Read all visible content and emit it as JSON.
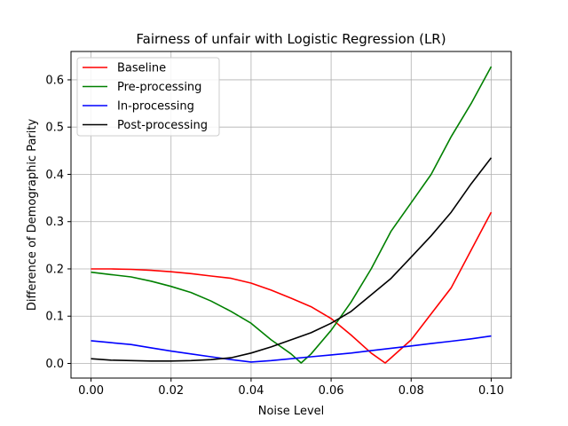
{
  "chart_data": {
    "type": "line",
    "title": "Fairness of unfair with Logistic Regression (LR)",
    "xlabel": "Noise Level",
    "ylabel": "Difference of Demographic Parity",
    "xlim": [
      -0.005,
      0.105
    ],
    "ylim": [
      -0.031,
      0.66
    ],
    "xticks": [
      0.0,
      0.02,
      0.04,
      0.06,
      0.08,
      0.1
    ],
    "xtick_labels": [
      "0.00",
      "0.02",
      "0.04",
      "0.06",
      "0.08",
      "0.10"
    ],
    "yticks": [
      0.0,
      0.1,
      0.2,
      0.3,
      0.4,
      0.5,
      0.6
    ],
    "ytick_labels": [
      "0.0",
      "0.1",
      "0.2",
      "0.3",
      "0.4",
      "0.5",
      "0.6"
    ],
    "grid": true,
    "legend_position": "top-left",
    "series": [
      {
        "name": "Baseline",
        "color": "#ff0000",
        "x": [
          0.0,
          0.005,
          0.01,
          0.015,
          0.02,
          0.025,
          0.03,
          0.035,
          0.04,
          0.045,
          0.05,
          0.055,
          0.06,
          0.065,
          0.07,
          0.0735,
          0.075,
          0.08,
          0.085,
          0.09,
          0.095,
          0.1
        ],
        "y": [
          0.2,
          0.2,
          0.199,
          0.197,
          0.194,
          0.19,
          0.185,
          0.18,
          0.17,
          0.155,
          0.138,
          0.12,
          0.095,
          0.06,
          0.022,
          0.001,
          0.012,
          0.05,
          0.105,
          0.16,
          0.24,
          0.32
        ]
      },
      {
        "name": "Pre-processing",
        "color": "#008000",
        "x": [
          0.0,
          0.005,
          0.01,
          0.015,
          0.02,
          0.025,
          0.03,
          0.035,
          0.04,
          0.045,
          0.05,
          0.0525,
          0.055,
          0.06,
          0.065,
          0.07,
          0.075,
          0.08,
          0.085,
          0.09,
          0.095,
          0.1
        ],
        "y": [
          0.193,
          0.188,
          0.183,
          0.174,
          0.163,
          0.15,
          0.132,
          0.11,
          0.085,
          0.05,
          0.02,
          0.001,
          0.02,
          0.07,
          0.13,
          0.2,
          0.28,
          0.34,
          0.4,
          0.48,
          0.55,
          0.628
        ]
      },
      {
        "name": "In-processing",
        "color": "#0000ff",
        "x": [
          0.0,
          0.005,
          0.01,
          0.015,
          0.02,
          0.025,
          0.03,
          0.035,
          0.04,
          0.045,
          0.05,
          0.055,
          0.06,
          0.065,
          0.07,
          0.075,
          0.08,
          0.085,
          0.09,
          0.095,
          0.1
        ],
        "y": [
          0.048,
          0.044,
          0.04,
          0.033,
          0.026,
          0.02,
          0.014,
          0.008,
          0.003,
          0.006,
          0.01,
          0.014,
          0.018,
          0.022,
          0.027,
          0.032,
          0.037,
          0.042,
          0.047,
          0.052,
          0.058
        ]
      },
      {
        "name": "Post-processing",
        "color": "#000000",
        "x": [
          0.0,
          0.005,
          0.01,
          0.015,
          0.02,
          0.025,
          0.03,
          0.035,
          0.04,
          0.045,
          0.05,
          0.055,
          0.06,
          0.065,
          0.07,
          0.075,
          0.08,
          0.085,
          0.09,
          0.095,
          0.1
        ],
        "y": [
          0.01,
          0.007,
          0.006,
          0.005,
          0.005,
          0.006,
          0.008,
          0.012,
          0.022,
          0.035,
          0.05,
          0.065,
          0.085,
          0.11,
          0.145,
          0.18,
          0.225,
          0.27,
          0.32,
          0.38,
          0.435
        ]
      }
    ]
  }
}
